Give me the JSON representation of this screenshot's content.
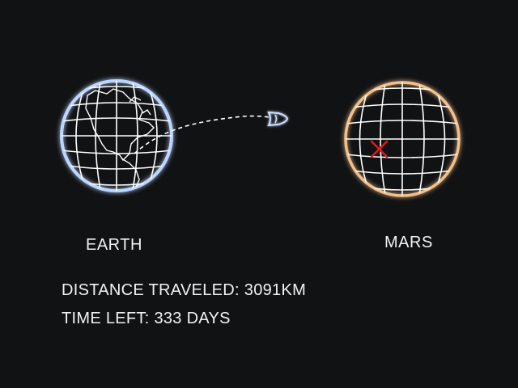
{
  "planets": {
    "earth": {
      "label": "EARTH",
      "glow_color": "#bcd6ff"
    },
    "mars": {
      "label": "MARS",
      "glow_color": "#f3c08a"
    }
  },
  "target_marker": {
    "color": "#e01818"
  },
  "stats": {
    "distance_label": "DISTANCE TRAVELED:",
    "distance_value": "3091KM",
    "time_label": "TIME LEFT:",
    "time_value": "333 DAYS"
  },
  "colors": {
    "background": "#111214",
    "grid_line": "#ffffff",
    "text": "#f2f2f2"
  }
}
